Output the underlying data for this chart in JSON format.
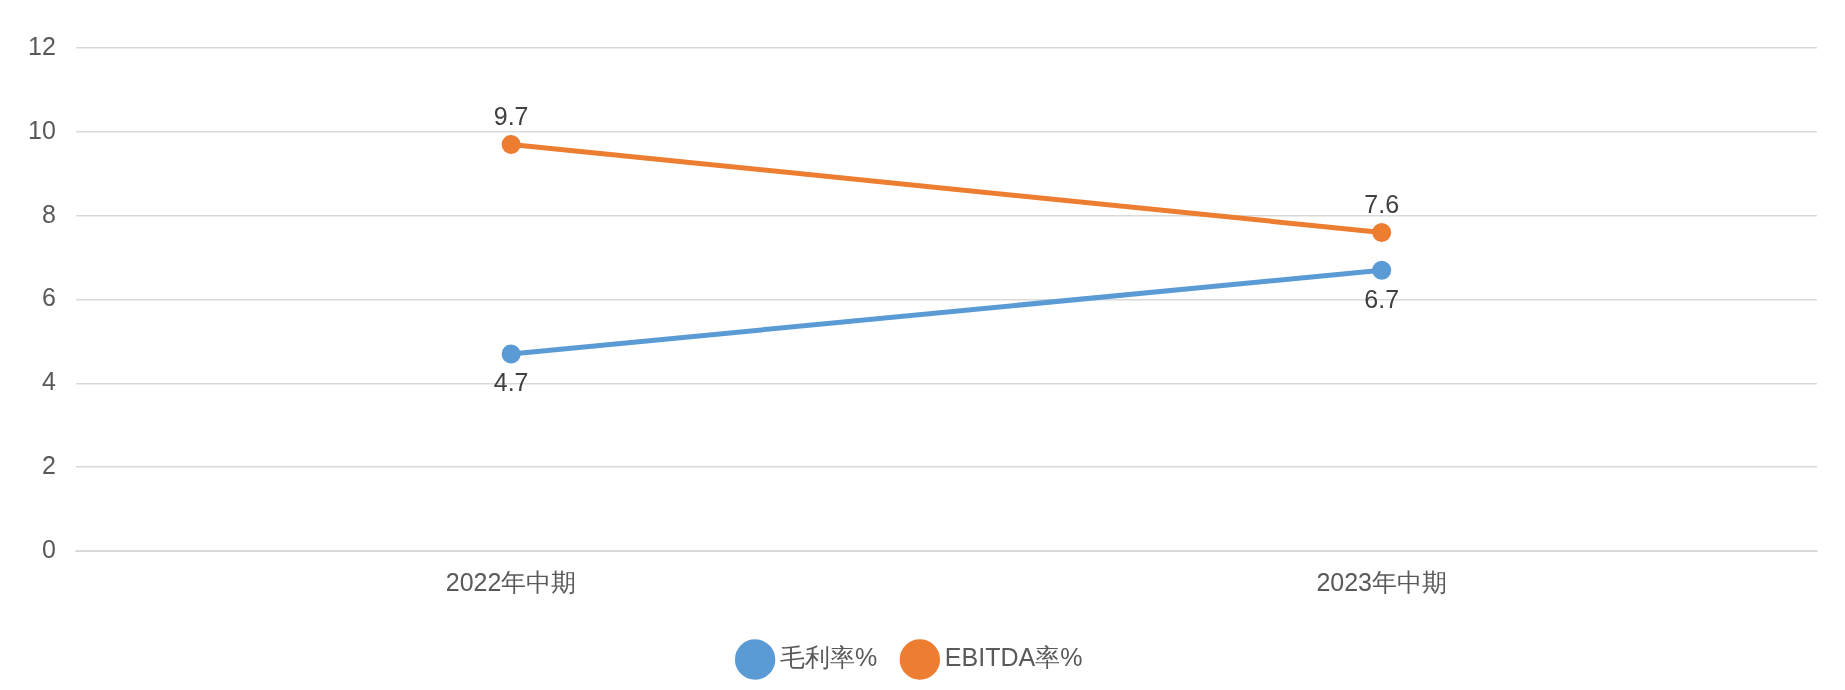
{
  "chart_data": {
    "type": "line",
    "categories": [
      "2022年中期",
      "2023年中期"
    ],
    "series": [
      {
        "name": "毛利率%",
        "color": "#5b9bd5",
        "values": [
          4.7,
          6.7
        ]
      },
      {
        "name": "EBITDA率%",
        "color": "#ed7d31",
        "values": [
          9.7,
          7.6
        ]
      }
    ],
    "ylim": [
      0,
      12
    ],
    "yticks": [
      0,
      2,
      4,
      6,
      8,
      10,
      12
    ],
    "grid": "y",
    "legend": "bottom",
    "marker": "circle",
    "line_style": "solid",
    "data_labels": true
  }
}
